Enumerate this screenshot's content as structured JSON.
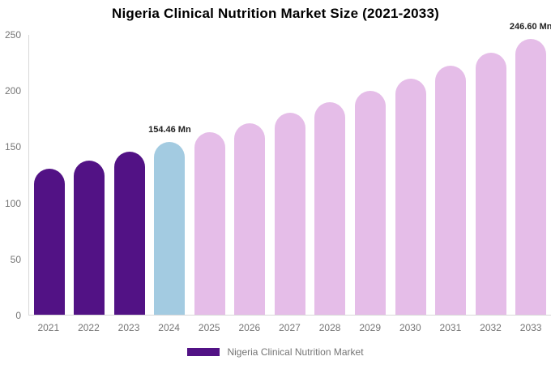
{
  "chart_data": {
    "type": "bar",
    "title": "Nigeria Clinical Nutrition Market Size (2021-2033)",
    "unit": "Mn",
    "categories": [
      "2021",
      "2022",
      "2023",
      "2024",
      "2025",
      "2026",
      "2027",
      "2028",
      "2029",
      "2030",
      "2031",
      "2032",
      "2033"
    ],
    "values": [
      130.5,
      137.5,
      145.5,
      154.46,
      162.7,
      171.3,
      180.5,
      190.1,
      200.3,
      211.0,
      222.3,
      234.1,
      246.6
    ],
    "bar_segments": [
      "historical",
      "historical",
      "historical",
      "base_year",
      "forecast",
      "forecast",
      "forecast",
      "forecast",
      "forecast",
      "forecast",
      "forecast",
      "forecast",
      "forecast"
    ],
    "colors": {
      "historical": "#521285",
      "base_year": "#A3CBE1",
      "forecast": "#E5BDE8"
    },
    "ylim": [
      0,
      250
    ],
    "yticks": [
      0,
      50,
      100,
      150,
      200,
      250
    ],
    "grid": false,
    "annotations": [
      {
        "category": "2024",
        "label": "154.46 Mn"
      },
      {
        "category": "2033",
        "label": "246.60 Mn"
      }
    ],
    "legend": {
      "position": "bottom",
      "items": [
        {
          "label": "Nigeria Clinical Nutrition Market",
          "color": "#521285"
        }
      ]
    }
  }
}
